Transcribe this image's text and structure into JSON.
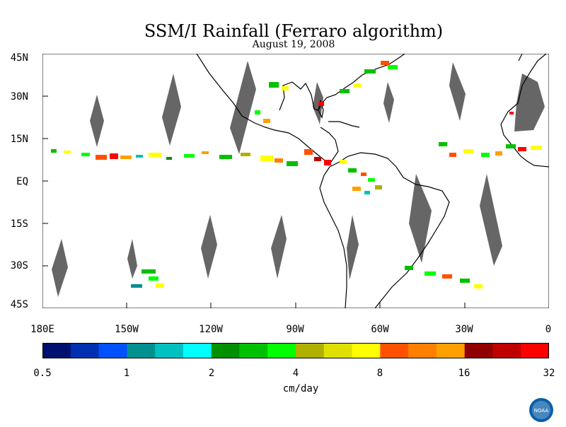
{
  "title": "SSM/I Rainfall (Ferraro algorithm)",
  "date": "August 19, 2008",
  "map": {
    "lat_labels": [
      "45N",
      "30N",
      "15N",
      "EQ",
      "15S",
      "30S",
      "45S"
    ],
    "lon_labels": [
      "180E",
      "150W",
      "120W",
      "90W",
      "60W",
      "30W",
      "0"
    ]
  },
  "colorbar": {
    "colors": [
      "#001070",
      "#0030b0",
      "#0050ff",
      "#009090",
      "#00c0c0",
      "#00ffff",
      "#009000",
      "#00c000",
      "#00ff00",
      "#b0b000",
      "#e0e000",
      "#ffff00",
      "#ff5000",
      "#ff8000",
      "#ffa000",
      "#900000",
      "#c00000",
      "#ff0000"
    ],
    "tick_labels": [
      "0.5",
      "1",
      "2",
      "4",
      "8",
      "16",
      "32"
    ],
    "unit": "cm/day"
  },
  "colors": {
    "swath_gap": "#666666",
    "coastline": "#000000"
  },
  "logo": {
    "left_text": "ESRL",
    "right_text": "PSD",
    "center_text": "NOAA"
  }
}
